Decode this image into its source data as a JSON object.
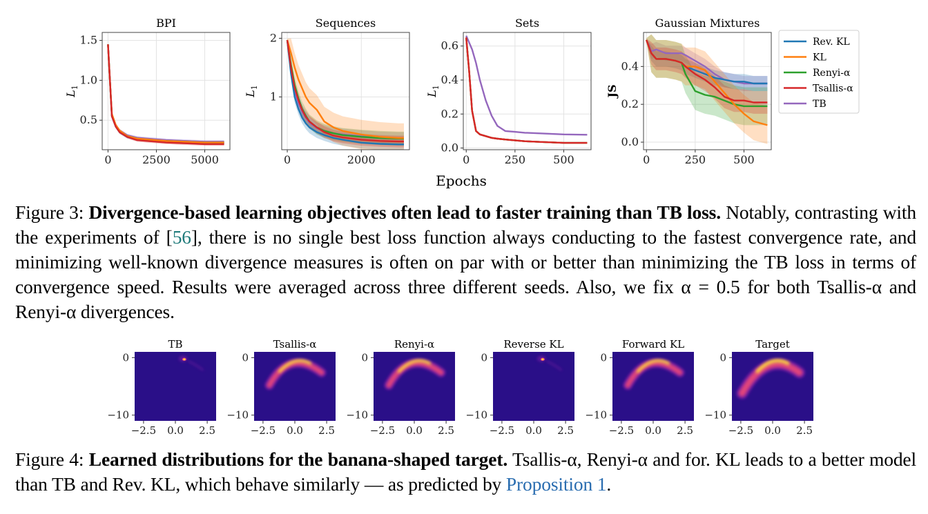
{
  "figure3": {
    "shared_xlabel": "Epochs",
    "caption": {
      "label": "Figure 3:",
      "title": "Divergence-based learning objectives often lead to faster training than TB loss.",
      "text_before_ref": "Notably, contrasting with the experiments of [",
      "ref": "56",
      "text_after_ref": "], there is no single best loss function always conducting to the fastest convergence rate, and minimizing well-known divergence measures is often on par with or better than minimizing the TB loss in terms of convergence speed. Results were averaged across three different seeds. Also, we fix α = 0.5 for both Tsallis-α and Renyi-α divergences."
    },
    "legend": [
      {
        "name": "Rev. KL",
        "color": "#1f77b4"
      },
      {
        "name": "KL",
        "color": "#ff7f0e"
      },
      {
        "name": "Renyi-α",
        "color": "#2ca02c"
      },
      {
        "name": "Tsallis-α",
        "color": "#d62728"
      },
      {
        "name": "TB",
        "color": "#9467bd"
      }
    ]
  },
  "chart_data": [
    {
      "type": "line",
      "title": "BPI",
      "ylabel": "L1",
      "xlim": [
        -300,
        6300
      ],
      "ylim": [
        0.13,
        1.6
      ],
      "xticks": [
        0,
        2500,
        5000
      ],
      "xtick_labels": [
        "0",
        "2500",
        "5000"
      ],
      "yticks": [
        0.5,
        1.0,
        1.5
      ],
      "ytick_labels": [
        "0.5",
        "1.0",
        "1.5"
      ],
      "x": [
        0,
        100,
        200,
        400,
        600,
        1000,
        1500,
        2000,
        3000,
        4000,
        5000,
        6000
      ],
      "series": [
        {
          "name": "Rev. KL",
          "values": [
            1.45,
            1.0,
            0.55,
            0.42,
            0.35,
            0.29,
            0.26,
            0.25,
            0.23,
            0.22,
            0.21,
            0.21
          ],
          "band": 0.02
        },
        {
          "name": "KL",
          "values": [
            1.45,
            1.0,
            0.58,
            0.44,
            0.37,
            0.3,
            0.27,
            0.26,
            0.24,
            0.23,
            0.22,
            0.22
          ],
          "band": 0.02
        },
        {
          "name": "Renyi-α",
          "values": [
            1.45,
            1.0,
            0.56,
            0.43,
            0.36,
            0.3,
            0.27,
            0.25,
            0.24,
            0.23,
            0.22,
            0.22
          ],
          "band": 0.02
        },
        {
          "name": "Tsallis-α",
          "values": [
            1.45,
            1.0,
            0.55,
            0.42,
            0.35,
            0.29,
            0.25,
            0.24,
            0.22,
            0.21,
            0.2,
            0.2
          ],
          "band": 0.02
        },
        {
          "name": "TB",
          "values": [
            1.45,
            1.0,
            0.57,
            0.44,
            0.37,
            0.31,
            0.28,
            0.27,
            0.25,
            0.24,
            0.23,
            0.23
          ],
          "band": 0.02
        }
      ]
    },
    {
      "type": "line",
      "title": "Sequences",
      "ylabel": "L1",
      "xlim": [
        -150,
        3300
      ],
      "ylim": [
        0.1,
        2.1
      ],
      "xticks": [
        0,
        2000
      ],
      "xtick_labels": [
        "0",
        "2000"
      ],
      "yticks": [
        1,
        2
      ],
      "ytick_labels": [
        "1",
        "2"
      ],
      "x": [
        0,
        100,
        200,
        300,
        400,
        500,
        600,
        800,
        1000,
        1250,
        1500,
        2000,
        2500,
        3000,
        3150
      ],
      "series": [
        {
          "name": "Rev. KL",
          "values": [
            1.97,
            1.4,
            1.0,
            0.8,
            0.65,
            0.55,
            0.48,
            0.4,
            0.35,
            0.3,
            0.27,
            0.22,
            0.2,
            0.19,
            0.19
          ],
          "band": 0.1
        },
        {
          "name": "KL",
          "values": [
            1.97,
            1.75,
            1.5,
            1.3,
            1.15,
            1.0,
            0.9,
            0.78,
            0.58,
            0.48,
            0.42,
            0.36,
            0.32,
            0.3,
            0.3
          ],
          "band": 0.25
        },
        {
          "name": "Renyi-α",
          "values": [
            1.97,
            1.55,
            1.2,
            0.98,
            0.8,
            0.68,
            0.58,
            0.48,
            0.42,
            0.38,
            0.35,
            0.32,
            0.3,
            0.29,
            0.29
          ],
          "band": 0.12
        },
        {
          "name": "Tsallis-α",
          "values": [
            1.97,
            1.5,
            1.15,
            0.95,
            0.78,
            0.66,
            0.58,
            0.48,
            0.4,
            0.34,
            0.31,
            0.27,
            0.25,
            0.24,
            0.24
          ],
          "band": 0.1
        },
        {
          "name": "TB",
          "values": [
            1.97,
            1.45,
            1.1,
            0.9,
            0.75,
            0.65,
            0.56,
            0.47,
            0.42,
            0.38,
            0.36,
            0.33,
            0.31,
            0.3,
            0.3
          ],
          "band": 0.1
        }
      ]
    },
    {
      "type": "line",
      "title": "Sets",
      "ylabel": "L1",
      "xlim": [
        -15,
        640
      ],
      "ylim": [
        -0.01,
        0.68
      ],
      "xticks": [
        0,
        250,
        500
      ],
      "xtick_labels": [
        "0",
        "250",
        "500"
      ],
      "yticks": [
        0.0,
        0.2,
        0.4,
        0.6
      ],
      "ytick_labels": [
        "0.0",
        "0.2",
        "0.4",
        "0.6"
      ],
      "x": [
        0,
        15,
        30,
        50,
        70,
        100,
        130,
        160,
        200,
        250,
        300,
        400,
        500,
        620
      ],
      "series": [
        {
          "name": "Rev. KL",
          "values": [
            0.65,
            0.45,
            0.22,
            0.1,
            0.08,
            0.07,
            0.06,
            0.055,
            0.05,
            0.045,
            0.04,
            0.035,
            0.03,
            0.03
          ],
          "band": 0.003
        },
        {
          "name": "KL",
          "values": [
            0.65,
            0.45,
            0.22,
            0.1,
            0.08,
            0.07,
            0.06,
            0.055,
            0.05,
            0.045,
            0.04,
            0.035,
            0.03,
            0.03
          ],
          "band": 0.003
        },
        {
          "name": "Renyi-α",
          "values": [
            0.65,
            0.45,
            0.22,
            0.1,
            0.08,
            0.07,
            0.06,
            0.055,
            0.05,
            0.045,
            0.04,
            0.035,
            0.03,
            0.03
          ],
          "band": 0.003
        },
        {
          "name": "Tsallis-α",
          "values": [
            0.65,
            0.45,
            0.22,
            0.1,
            0.08,
            0.07,
            0.06,
            0.055,
            0.05,
            0.045,
            0.04,
            0.035,
            0.03,
            0.03
          ],
          "band": 0.003
        },
        {
          "name": "TB",
          "values": [
            0.66,
            0.62,
            0.58,
            0.5,
            0.4,
            0.28,
            0.19,
            0.13,
            0.1,
            0.095,
            0.09,
            0.085,
            0.08,
            0.078
          ],
          "band": 0.004
        }
      ]
    },
    {
      "type": "line",
      "title": "Gaussian Mixtures",
      "ylabel": "JS",
      "xlim": [
        -15,
        640
      ],
      "ylim": [
        -0.04,
        0.58
      ],
      "xticks": [
        0,
        250,
        500
      ],
      "xtick_labels": [
        "0",
        "250",
        "500"
      ],
      "yticks": [
        0.0,
        0.2,
        0.4
      ],
      "ytick_labels": [
        "0.0",
        "0.2",
        "0.4"
      ],
      "x": [
        0,
        25,
        50,
        100,
        150,
        180,
        200,
        250,
        300,
        350,
        400,
        450,
        500,
        550,
        620
      ],
      "series": [
        {
          "name": "Rev. KL",
          "values": [
            0.54,
            0.47,
            0.44,
            0.44,
            0.43,
            0.42,
            0.4,
            0.38,
            0.36,
            0.34,
            0.33,
            0.32,
            0.32,
            0.31,
            0.31
          ],
          "band": 0.04
        },
        {
          "name": "KL",
          "values": [
            0.54,
            0.47,
            0.44,
            0.44,
            0.43,
            0.42,
            0.4,
            0.4,
            0.38,
            0.32,
            0.26,
            0.2,
            0.15,
            0.11,
            0.09
          ],
          "band": 0.1
        },
        {
          "name": "Renyi-α",
          "values": [
            0.54,
            0.47,
            0.44,
            0.44,
            0.43,
            0.42,
            0.36,
            0.27,
            0.25,
            0.24,
            0.22,
            0.2,
            0.19,
            0.19,
            0.19
          ],
          "band": 0.1
        },
        {
          "name": "Tsallis-α",
          "values": [
            0.54,
            0.47,
            0.44,
            0.44,
            0.43,
            0.42,
            0.4,
            0.36,
            0.33,
            0.29,
            0.24,
            0.22,
            0.22,
            0.21,
            0.21
          ],
          "band": 0.06
        },
        {
          "name": "TB",
          "values": [
            0.54,
            0.48,
            0.49,
            0.47,
            0.47,
            0.47,
            0.46,
            0.43,
            0.4,
            0.36,
            0.33,
            0.32,
            0.31,
            0.31,
            0.31
          ],
          "band": 0.04
        }
      ]
    },
    {
      "type": "heatmap",
      "panels": [
        {
          "title": "TB",
          "shape": "point"
        },
        {
          "title": "Tsallis-α",
          "shape": "banana"
        },
        {
          "title": "Renyi-α",
          "shape": "banana"
        },
        {
          "title": "Reverse KL",
          "shape": "point"
        },
        {
          "title": "Forward KL",
          "shape": "banana"
        },
        {
          "title": "Target",
          "shape": "banana-full"
        }
      ],
      "xlim": [
        -3.2,
        3.2
      ],
      "ylim": [
        -11,
        1
      ],
      "xticks": [
        -2.5,
        0.0,
        2.5
      ],
      "xtick_labels": [
        "−2.5",
        "0.0",
        "2.5"
      ],
      "yticks": [
        0,
        -10
      ],
      "ytick_labels": [
        "0",
        "−10"
      ],
      "colormap": {
        "background": "#2a0f88",
        "low": "#7a1fa2",
        "mid": "#e0457b",
        "high": "#fdd53c"
      }
    }
  ],
  "figure4": {
    "caption": {
      "label": "Figure 4:",
      "title": "Learned distributions for the banana-shaped target.",
      "text_before_link": "Tsallis-α, Renyi-α and for. KL leads to a better model than TB and Rev. KL, which behave similarly — as predicted by",
      "link": "Proposition 1",
      "text_after_link": "."
    }
  }
}
